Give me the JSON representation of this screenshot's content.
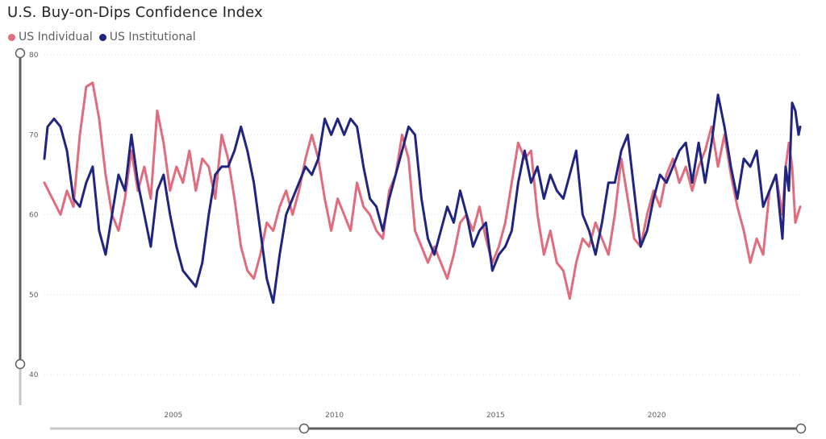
{
  "chart_data": {
    "type": "line",
    "title": "U.S. Buy-on-Dips Confidence Index",
    "xlabel": "",
    "ylabel": "",
    "xlim": [
      2001.0,
      2024.5
    ],
    "ylim": [
      40,
      80
    ],
    "yticks": [
      40,
      50,
      60,
      70,
      80
    ],
    "xticks": [
      2005,
      2010,
      2015,
      2020
    ],
    "grid": true,
    "legend_position": "top-left",
    "series": [
      {
        "name": "US Individual",
        "color": "#e06c7d",
        "points": [
          [
            2001.0,
            64
          ],
          [
            2001.25,
            62
          ],
          [
            2001.5,
            60
          ],
          [
            2001.7,
            63
          ],
          [
            2001.9,
            61
          ],
          [
            2002.1,
            70
          ],
          [
            2002.3,
            76
          ],
          [
            2002.5,
            76.5
          ],
          [
            2002.7,
            72
          ],
          [
            2002.9,
            65
          ],
          [
            2003.1,
            60
          ],
          [
            2003.3,
            58
          ],
          [
            2003.5,
            62
          ],
          [
            2003.7,
            68
          ],
          [
            2003.9,
            63
          ],
          [
            2004.1,
            66
          ],
          [
            2004.3,
            62
          ],
          [
            2004.5,
            73
          ],
          [
            2004.7,
            69
          ],
          [
            2004.9,
            63
          ],
          [
            2005.1,
            66
          ],
          [
            2005.3,
            64
          ],
          [
            2005.5,
            68
          ],
          [
            2005.7,
            63
          ],
          [
            2005.9,
            67
          ],
          [
            2006.1,
            66
          ],
          [
            2006.3,
            62
          ],
          [
            2006.5,
            70
          ],
          [
            2006.7,
            67
          ],
          [
            2006.9,
            62
          ],
          [
            2007.1,
            56
          ],
          [
            2007.3,
            53
          ],
          [
            2007.5,
            52
          ],
          [
            2007.7,
            55
          ],
          [
            2007.9,
            59
          ],
          [
            2008.1,
            58
          ],
          [
            2008.3,
            61
          ],
          [
            2008.5,
            63
          ],
          [
            2008.7,
            60
          ],
          [
            2008.9,
            63
          ],
          [
            2009.1,
            67
          ],
          [
            2009.3,
            70
          ],
          [
            2009.5,
            67
          ],
          [
            2009.7,
            62
          ],
          [
            2009.9,
            58
          ],
          [
            2010.1,
            62
          ],
          [
            2010.3,
            60
          ],
          [
            2010.5,
            58
          ],
          [
            2010.7,
            64
          ],
          [
            2010.9,
            61
          ],
          [
            2011.1,
            60
          ],
          [
            2011.3,
            58
          ],
          [
            2011.5,
            57
          ],
          [
            2011.7,
            63
          ],
          [
            2011.9,
            65
          ],
          [
            2012.1,
            70
          ],
          [
            2012.3,
            67
          ],
          [
            2012.5,
            58
          ],
          [
            2012.7,
            56
          ],
          [
            2012.9,
            54
          ],
          [
            2013.1,
            56
          ],
          [
            2013.3,
            54
          ],
          [
            2013.5,
            52
          ],
          [
            2013.7,
            55
          ],
          [
            2013.9,
            59
          ],
          [
            2014.1,
            60
          ],
          [
            2014.3,
            58
          ],
          [
            2014.5,
            61
          ],
          [
            2014.7,
            57
          ],
          [
            2014.9,
            54
          ],
          [
            2015.1,
            56
          ],
          [
            2015.3,
            59
          ],
          [
            2015.5,
            64
          ],
          [
            2015.7,
            69
          ],
          [
            2015.9,
            67
          ],
          [
            2016.1,
            68
          ],
          [
            2016.3,
            60
          ],
          [
            2016.5,
            55
          ],
          [
            2016.7,
            58
          ],
          [
            2016.9,
            54
          ],
          [
            2017.1,
            53
          ],
          [
            2017.3,
            49.5
          ],
          [
            2017.5,
            54
          ],
          [
            2017.7,
            57
          ],
          [
            2017.9,
            56
          ],
          [
            2018.1,
            59
          ],
          [
            2018.3,
            57
          ],
          [
            2018.5,
            55
          ],
          [
            2018.7,
            60
          ],
          [
            2018.9,
            67
          ],
          [
            2019.1,
            62
          ],
          [
            2019.3,
            57
          ],
          [
            2019.5,
            56
          ],
          [
            2019.7,
            60
          ],
          [
            2019.9,
            63
          ],
          [
            2020.1,
            61
          ],
          [
            2020.3,
            65
          ],
          [
            2020.5,
            67
          ],
          [
            2020.7,
            64
          ],
          [
            2020.9,
            66
          ],
          [
            2021.1,
            63
          ],
          [
            2021.3,
            66
          ],
          [
            2021.5,
            68
          ],
          [
            2021.7,
            71
          ],
          [
            2021.9,
            66
          ],
          [
            2022.1,
            70
          ],
          [
            2022.3,
            65
          ],
          [
            2022.5,
            61
          ],
          [
            2022.7,
            58
          ],
          [
            2022.9,
            54
          ],
          [
            2023.1,
            57
          ],
          [
            2023.3,
            55
          ],
          [
            2023.5,
            63
          ],
          [
            2023.7,
            65
          ],
          [
            2023.9,
            60
          ],
          [
            2024.0,
            66
          ],
          [
            2024.1,
            69
          ],
          [
            2024.2,
            66
          ],
          [
            2024.3,
            59
          ],
          [
            2024.45,
            61
          ]
        ]
      },
      {
        "name": "US Institutional",
        "color": "#1f2580",
        "points": [
          [
            2001.0,
            67
          ],
          [
            2001.1,
            71
          ],
          [
            2001.3,
            72
          ],
          [
            2001.5,
            71
          ],
          [
            2001.7,
            68
          ],
          [
            2001.9,
            62
          ],
          [
            2002.1,
            61
          ],
          [
            2002.3,
            64
          ],
          [
            2002.5,
            66
          ],
          [
            2002.7,
            58
          ],
          [
            2002.9,
            55
          ],
          [
            2003.1,
            60
          ],
          [
            2003.3,
            65
          ],
          [
            2003.5,
            63
          ],
          [
            2003.7,
            70
          ],
          [
            2003.9,
            64
          ],
          [
            2004.1,
            60
          ],
          [
            2004.3,
            56
          ],
          [
            2004.5,
            63
          ],
          [
            2004.7,
            65
          ],
          [
            2004.9,
            60
          ],
          [
            2005.1,
            56
          ],
          [
            2005.3,
            53
          ],
          [
            2005.5,
            52
          ],
          [
            2005.7,
            51
          ],
          [
            2005.9,
            54
          ],
          [
            2006.1,
            60
          ],
          [
            2006.3,
            65
          ],
          [
            2006.5,
            66
          ],
          [
            2006.7,
            66
          ],
          [
            2006.9,
            68
          ],
          [
            2007.1,
            71
          ],
          [
            2007.3,
            68
          ],
          [
            2007.5,
            64
          ],
          [
            2007.7,
            58
          ],
          [
            2007.9,
            52
          ],
          [
            2008.1,
            49
          ],
          [
            2008.3,
            55
          ],
          [
            2008.5,
            60
          ],
          [
            2008.7,
            62
          ],
          [
            2008.9,
            64
          ],
          [
            2009.1,
            66
          ],
          [
            2009.3,
            65
          ],
          [
            2009.5,
            67
          ],
          [
            2009.7,
            72
          ],
          [
            2009.9,
            70
          ],
          [
            2010.1,
            72
          ],
          [
            2010.3,
            70
          ],
          [
            2010.5,
            72
          ],
          [
            2010.7,
            71
          ],
          [
            2010.9,
            66
          ],
          [
            2011.1,
            62
          ],
          [
            2011.3,
            61
          ],
          [
            2011.5,
            58
          ],
          [
            2011.7,
            62
          ],
          [
            2011.9,
            65
          ],
          [
            2012.1,
            68
          ],
          [
            2012.3,
            71
          ],
          [
            2012.5,
            70
          ],
          [
            2012.7,
            62
          ],
          [
            2012.9,
            57
          ],
          [
            2013.1,
            55
          ],
          [
            2013.3,
            58
          ],
          [
            2013.5,
            61
          ],
          [
            2013.7,
            59
          ],
          [
            2013.9,
            63
          ],
          [
            2014.1,
            60
          ],
          [
            2014.3,
            56
          ],
          [
            2014.5,
            58
          ],
          [
            2014.7,
            59
          ],
          [
            2014.9,
            53
          ],
          [
            2015.1,
            55
          ],
          [
            2015.3,
            56
          ],
          [
            2015.5,
            58
          ],
          [
            2015.7,
            64
          ],
          [
            2015.9,
            68
          ],
          [
            2016.1,
            64
          ],
          [
            2016.3,
            66
          ],
          [
            2016.5,
            62
          ],
          [
            2016.7,
            65
          ],
          [
            2016.9,
            63
          ],
          [
            2017.1,
            62
          ],
          [
            2017.3,
            65
          ],
          [
            2017.5,
            68
          ],
          [
            2017.7,
            60
          ],
          [
            2017.9,
            58
          ],
          [
            2018.1,
            55
          ],
          [
            2018.3,
            59
          ],
          [
            2018.5,
            64
          ],
          [
            2018.7,
            64
          ],
          [
            2018.9,
            68
          ],
          [
            2019.1,
            70
          ],
          [
            2019.3,
            63
          ],
          [
            2019.5,
            56
          ],
          [
            2019.7,
            58
          ],
          [
            2019.9,
            62
          ],
          [
            2020.1,
            65
          ],
          [
            2020.3,
            64
          ],
          [
            2020.5,
            66
          ],
          [
            2020.7,
            68
          ],
          [
            2020.9,
            69
          ],
          [
            2021.1,
            64
          ],
          [
            2021.3,
            69
          ],
          [
            2021.5,
            64
          ],
          [
            2021.7,
            69
          ],
          [
            2021.9,
            75
          ],
          [
            2022.1,
            71
          ],
          [
            2022.3,
            66
          ],
          [
            2022.5,
            62
          ],
          [
            2022.7,
            67
          ],
          [
            2022.9,
            66
          ],
          [
            2023.1,
            68
          ],
          [
            2023.3,
            61
          ],
          [
            2023.5,
            63
          ],
          [
            2023.7,
            65
          ],
          [
            2023.9,
            57
          ],
          [
            2024.0,
            66
          ],
          [
            2024.1,
            63
          ],
          [
            2024.2,
            74
          ],
          [
            2024.3,
            73
          ],
          [
            2024.4,
            70
          ],
          [
            2024.45,
            71
          ]
        ]
      }
    ]
  }
}
